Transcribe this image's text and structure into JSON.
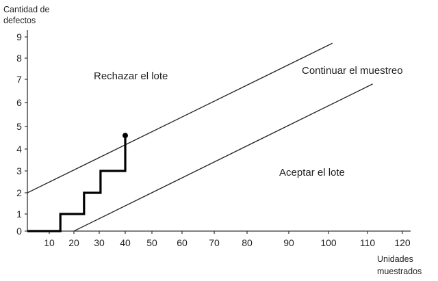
{
  "chart_data": {
    "type": "line",
    "ylabel": "Cantidad de defectos",
    "xlabel": "Unidades muestrados",
    "xlim": [
      0,
      120
    ],
    "ylim": [
      0,
      9
    ],
    "x_ticks": [
      10,
      20,
      30,
      40,
      50,
      60,
      70,
      80,
      90,
      100,
      110,
      120
    ],
    "y_ticks": [
      0,
      1,
      2,
      3,
      4,
      5,
      6,
      7,
      8,
      9
    ],
    "grid": false,
    "reject_line": {
      "points": [
        [
          0,
          2
        ],
        [
          101,
          8.7
        ]
      ]
    },
    "accept_line": {
      "points": [
        [
          20,
          0
        ],
        [
          111.5,
          6.8
        ]
      ]
    },
    "sample_path": {
      "points": [
        [
          0,
          0
        ],
        [
          14.5,
          0
        ],
        [
          14.5,
          1
        ],
        [
          24,
          1
        ],
        [
          24,
          2
        ],
        [
          30.5,
          2
        ],
        [
          30.5,
          3
        ],
        [
          40,
          3
        ],
        [
          40,
          4.6
        ]
      ],
      "end_marker": [
        40,
        4.6
      ]
    },
    "annotations": {
      "reject_region": "Rechazar el lote",
      "continue_region": "Continuar el muestreo",
      "accept_region": "Aceptar el lote"
    },
    "colors": {
      "axes": "#333333",
      "boundary_lines": "#2a2a2a",
      "sample_path": "#000000",
      "text": "#1f1f1f"
    }
  }
}
